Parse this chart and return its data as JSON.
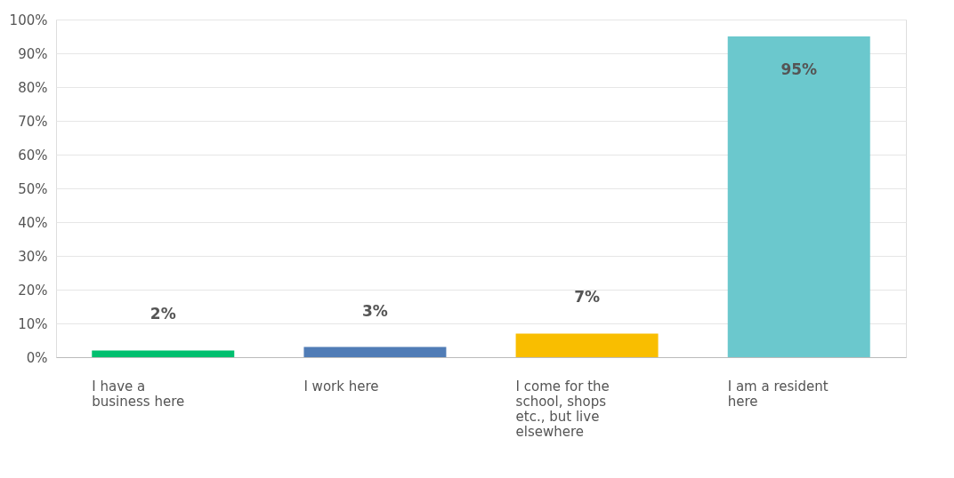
{
  "chart_data": {
    "type": "bar",
    "categories": [
      "I have a business here",
      "I work here",
      "I come for the school, shops etc., but live elsewhere",
      "I am a resident here"
    ],
    "values": [
      2,
      3,
      7,
      95
    ],
    "colors": [
      "#00bf6f",
      "#507cb6",
      "#f9be00",
      "#6bc8cd"
    ],
    "value_labels": [
      "2%",
      "3%",
      "7%",
      "95%"
    ],
    "ylim": [
      0,
      100
    ],
    "yticks": [
      {
        "value": 0,
        "label": "0%"
      },
      {
        "value": 10,
        "label": "10%"
      },
      {
        "value": 20,
        "label": "20%"
      },
      {
        "value": 30,
        "label": "30%"
      },
      {
        "value": 40,
        "label": "40%"
      },
      {
        "value": 50,
        "label": "50%"
      },
      {
        "value": 60,
        "label": "60%"
      },
      {
        "value": 70,
        "label": "70%"
      },
      {
        "value": 80,
        "label": "80%"
      },
      {
        "value": 90,
        "label": "90%"
      },
      {
        "value": 100,
        "label": "100%"
      }
    ],
    "grid": "y"
  }
}
